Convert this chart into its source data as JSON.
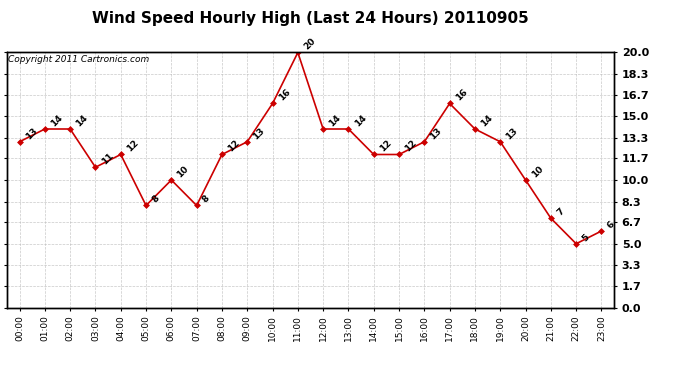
{
  "title": "Wind Speed Hourly High (Last 24 Hours) 20110905",
  "copyright": "Copyright 2011 Cartronics.com",
  "hours": [
    "00:00",
    "01:00",
    "02:00",
    "03:00",
    "04:00",
    "05:00",
    "06:00",
    "07:00",
    "08:00",
    "09:00",
    "10:00",
    "11:00",
    "12:00",
    "13:00",
    "14:00",
    "15:00",
    "16:00",
    "17:00",
    "18:00",
    "19:00",
    "20:00",
    "21:00",
    "22:00",
    "23:00"
  ],
  "values": [
    13,
    14,
    14,
    11,
    12,
    8,
    10,
    8,
    12,
    13,
    16,
    20,
    14,
    14,
    12,
    12,
    13,
    16,
    14,
    13,
    10,
    7,
    5,
    6
  ],
  "line_color": "#cc0000",
  "marker_color": "#cc0000",
  "bg_color": "#ffffff",
  "grid_color": "#bbbbbb",
  "title_fontsize": 11,
  "copyright_fontsize": 6.5,
  "label_fontsize": 6.5,
  "ytick_fontsize": 8,
  "xtick_fontsize": 6.5,
  "ylim": [
    0.0,
    20.0
  ],
  "yticks": [
    0.0,
    1.7,
    3.3,
    5.0,
    6.7,
    8.3,
    10.0,
    11.7,
    13.3,
    15.0,
    16.7,
    18.3,
    20.0
  ]
}
